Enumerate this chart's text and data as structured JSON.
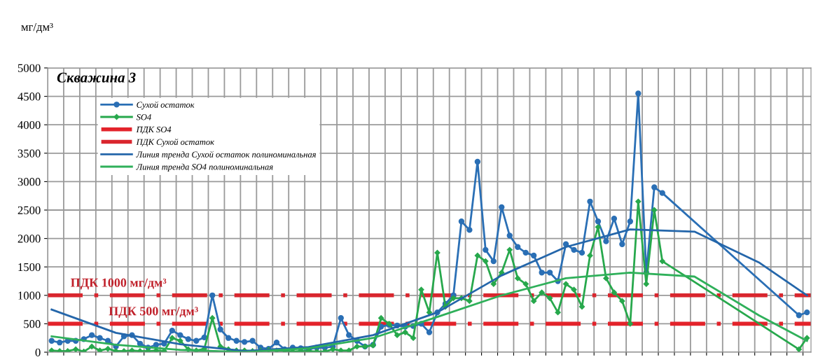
{
  "chart_data": {
    "type": "line",
    "title": "Скважина 3",
    "ylabel": "мг/дм³",
    "categories": [
      null,
      null,
      null,
      null,
      null,
      null,
      null,
      null,
      null,
      null,
      null,
      null,
      null,
      null,
      null,
      null,
      null,
      null,
      null,
      null,
      null,
      null,
      null,
      null,
      null,
      null,
      null,
      null,
      null,
      null,
      null,
      null,
      null,
      null,
      null,
      null,
      null,
      null,
      null,
      null,
      null,
      null,
      null,
      null,
      null,
      null,
      null,
      null,
      null,
      null,
      null,
      null,
      null,
      null,
      null,
      null,
      null,
      null,
      null,
      null,
      null,
      null,
      null,
      null,
      null,
      null,
      null,
      null,
      null,
      null,
      null,
      null,
      null,
      null,
      null,
      null,
      null,
      null,
      null,
      null,
      null,
      null,
      null,
      null,
      null,
      null,
      null,
      null,
      null,
      null,
      null,
      null,
      null,
      null,
      null
    ],
    "ylim": [
      0,
      5000
    ],
    "yticks": [
      0,
      500,
      1000,
      1500,
      2000,
      2500,
      3000,
      3500,
      4000,
      4500,
      5000
    ],
    "tick_labels": "y",
    "grid": true,
    "legend": "top left",
    "series": [
      {
        "name": "Сухой остаток",
        "color": "#2a6fb5",
        "marker": "circle",
        "line_style": "solid",
        "values": [
          200,
          170,
          200,
          200,
          230,
          300,
          250,
          200,
          100,
          280,
          300,
          150,
          80,
          130,
          150,
          380,
          300,
          230,
          200,
          260,
          1000,
          400,
          250,
          200,
          180,
          200,
          80,
          60,
          170,
          50,
          80,
          70,
          50,
          80,
          80,
          100,
          600,
          300,
          200,
          100,
          130,
          450,
          480,
          470,
          450,
          460,
          500,
          350,
          700,
          850,
          1000,
          2300,
          2150,
          3350,
          1800,
          1600,
          2550,
          2050,
          1850,
          1750,
          1700,
          1400,
          1400,
          1250,
          1900,
          1800,
          1750,
          2650,
          2300,
          1950,
          2350,
          1900,
          2300,
          4550,
          1400,
          2900,
          2800,
          null,
          null,
          null,
          null,
          null,
          null,
          null,
          null,
          null,
          null,
          null,
          null,
          null,
          null,
          null,
          null,
          650,
          700
        ]
      },
      {
        "name": "SO4",
        "color": "#27a84c",
        "marker": "diamond",
        "line_style": "solid",
        "values": [
          30,
          20,
          20,
          50,
          10,
          100,
          30,
          60,
          20,
          20,
          30,
          20,
          20,
          30,
          20,
          250,
          200,
          50,
          30,
          60,
          600,
          100,
          50,
          30,
          30,
          20,
          30,
          40,
          30,
          30,
          10,
          20,
          20,
          10,
          10,
          50,
          30,
          30,
          100,
          100,
          120,
          600,
          500,
          300,
          350,
          250,
          1100,
          700,
          1750,
          800,
          950,
          950,
          900,
          1700,
          1600,
          1200,
          1400,
          1800,
          1300,
          1200,
          900,
          1050,
          950,
          700,
          1200,
          1100,
          800,
          1700,
          2200,
          1300,
          1050,
          900,
          500,
          2650,
          1200,
          2500,
          1600,
          null,
          null,
          null,
          null,
          null,
          null,
          null,
          null,
          null,
          null,
          null,
          null,
          null,
          null,
          null,
          null,
          50,
          250
        ]
      },
      {
        "name": "Линия тренда Сухой остаток полиноминальная",
        "color": "#2466aa",
        "marker": "none",
        "line_style": "solid",
        "values": [
          750,
          null,
          null,
          null,
          null,
          null,
          null,
          null,
          340,
          null,
          null,
          null,
          null,
          null,
          null,
          null,
          140,
          null,
          null,
          null,
          null,
          null,
          null,
          null,
          20,
          null,
          null,
          null,
          null,
          null,
          null,
          null,
          90,
          null,
          null,
          null,
          null,
          null,
          null,
          null,
          300,
          null,
          null,
          null,
          null,
          null,
          null,
          null,
          700,
          null,
          null,
          null,
          null,
          null,
          null,
          null,
          1350,
          null,
          null,
          null,
          null,
          null,
          null,
          null,
          1850,
          null,
          null,
          null,
          null,
          null,
          null,
          null,
          2160,
          null,
          null,
          null,
          null,
          null,
          null,
          null,
          2120,
          null,
          null,
          null,
          null,
          null,
          null,
          null,
          1580,
          null,
          null,
          null,
          null,
          null,
          1000
        ]
      },
      {
        "name": "Линия тренда SO4 полиноминальная",
        "color": "#2fb05a",
        "marker": "none",
        "line_style": "solid",
        "values": [
          280,
          null,
          null,
          null,
          null,
          null,
          null,
          null,
          130,
          null,
          null,
          null,
          null,
          null,
          null,
          null,
          40,
          null,
          null,
          null,
          null,
          null,
          null,
          null,
          0,
          null,
          null,
          null,
          null,
          null,
          null,
          null,
          70,
          null,
          null,
          null,
          null,
          null,
          null,
          null,
          250,
          null,
          null,
          null,
          null,
          null,
          null,
          null,
          620,
          null,
          null,
          null,
          null,
          null,
          null,
          null,
          1000,
          null,
          null,
          null,
          null,
          null,
          null,
          null,
          1300,
          null,
          null,
          null,
          null,
          null,
          null,
          null,
          1400,
          null,
          null,
          null,
          null,
          null,
          null,
          null,
          1330,
          null,
          null,
          null,
          null,
          null,
          null,
          null,
          650,
          null,
          null,
          null,
          null,
          null,
          200
        ]
      }
    ],
    "ref_lines": [
      {
        "axis": "y",
        "value": 500,
        "label": "ПДК SO4",
        "color": "#e3232b",
        "line_style": "dashed"
      },
      {
        "axis": "y",
        "value": 1000,
        "label": "ПДК Сухой остаток",
        "color": "#d9262e",
        "line_style": "dashed"
      }
    ],
    "annotations": [
      {
        "text": "ПДК 1000 мг/дм³",
        "y": 1000
      },
      {
        "text": "ПДК 500 мг/дм³",
        "y": 500
      }
    ]
  }
}
